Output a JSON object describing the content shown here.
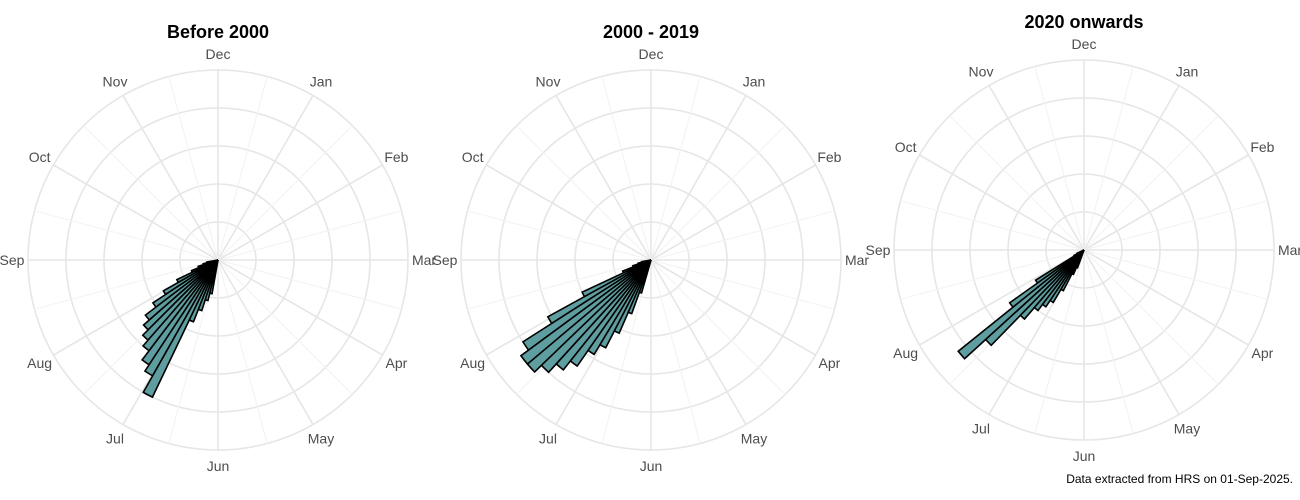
{
  "caption": "Data extracted from HRS on 01-Sep-2025.",
  "colors": {
    "bar_fill": "#5f9ea0",
    "bar_stroke": "#000000",
    "grid": "#e6e6e6",
    "label": "#4d4d4d"
  },
  "chart_data": [
    {
      "type": "bar",
      "coord": "polar",
      "title": "Before 2000",
      "month_labels": [
        "Jan",
        "Feb",
        "Mar",
        "Apr",
        "May",
        "Jun",
        "Jul",
        "Aug",
        "Sep",
        "Oct",
        "Nov",
        "Dec"
      ],
      "start_angle_deg": 260,
      "end_angle_deg": 190,
      "values": [
        0.06,
        0.08,
        0.11,
        0.15,
        0.24,
        0.33,
        0.41,
        0.48,
        0.52,
        0.56,
        0.6,
        0.66,
        0.7,
        0.8,
        0.35,
        0.28,
        0.22,
        0.18
      ],
      "rlim": [
        0,
        1
      ]
    },
    {
      "type": "bar",
      "coord": "polar",
      "title": "2000 - 2019",
      "month_labels": [
        "Jan",
        "Feb",
        "Mar",
        "Apr",
        "May",
        "Jun",
        "Jul",
        "Aug",
        "Sep",
        "Oct",
        "Nov",
        "Dec"
      ],
      "start_angle_deg": 260,
      "end_angle_deg": 196,
      "values": [
        0.05,
        0.07,
        0.1,
        0.16,
        0.4,
        0.62,
        0.8,
        0.85,
        0.85,
        0.8,
        0.74,
        0.68,
        0.58,
        0.52,
        0.42,
        0.3,
        0.18
      ],
      "rlim": [
        0,
        1
      ]
    },
    {
      "type": "bar",
      "coord": "polar",
      "title": "2020 onwards",
      "month_labels": [
        "Jan",
        "Feb",
        "Mar",
        "Apr",
        "May",
        "Jun",
        "Jul",
        "Aug",
        "Sep",
        "Oct",
        "Nov",
        "Dec"
      ],
      "start_angle_deg": 245,
      "end_angle_deg": 200,
      "values": [
        0.04,
        0.06,
        0.3,
        0.48,
        0.85,
        0.7,
        0.48,
        0.4,
        0.36,
        0.32,
        0.24,
        0.14,
        0.1
      ],
      "rlim": [
        0,
        1
      ]
    }
  ]
}
